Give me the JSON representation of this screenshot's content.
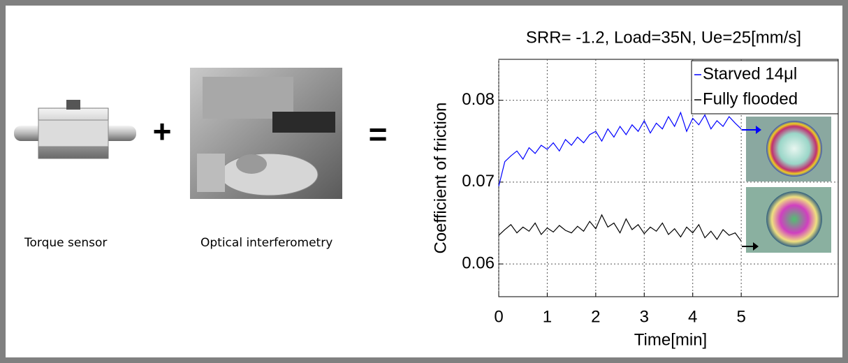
{
  "figure": {
    "plus": "+",
    "equals": "=",
    "torque_caption": "Torque sensor",
    "optics_caption": "Optical interferometry"
  },
  "chart_data": {
    "type": "line",
    "title": "SRR= -1.2, Load=35N, Ue=25[mm/s]",
    "x_label": "Time[min]",
    "y_label": "Coefficient of friction",
    "x": [
      0,
      0.125,
      0.25,
      0.375,
      0.5,
      0.625,
      0.75,
      0.875,
      1,
      1.125,
      1.25,
      1.375,
      1.5,
      1.625,
      1.75,
      1.875,
      2,
      2.125,
      2.25,
      2.375,
      2.5,
      2.625,
      2.75,
      2.875,
      3,
      3.125,
      3.25,
      3.375,
      3.5,
      3.625,
      3.75,
      3.875,
      4,
      4.125,
      4.25,
      4.375,
      4.5,
      4.625,
      4.75,
      4.875,
      5
    ],
    "series": [
      {
        "name": "Starved 14μl",
        "color": "#0000ff",
        "values": [
          0.0695,
          0.0725,
          0.0732,
          0.0738,
          0.0728,
          0.0742,
          0.0735,
          0.0745,
          0.074,
          0.0748,
          0.0738,
          0.0752,
          0.0745,
          0.0755,
          0.0748,
          0.0758,
          0.0762,
          0.075,
          0.0765,
          0.0755,
          0.0768,
          0.0758,
          0.077,
          0.0762,
          0.0775,
          0.076,
          0.0772,
          0.0765,
          0.078,
          0.0768,
          0.0785,
          0.0762,
          0.0778,
          0.077,
          0.0782,
          0.0765,
          0.0775,
          0.0768,
          0.078,
          0.0772,
          0.0765
        ]
      },
      {
        "name": "Fully flooded",
        "color": "#000000",
        "values": [
          0.0635,
          0.0642,
          0.0648,
          0.0638,
          0.0645,
          0.064,
          0.065,
          0.0636,
          0.0644,
          0.0639,
          0.0647,
          0.0641,
          0.0638,
          0.0646,
          0.064,
          0.0652,
          0.0643,
          0.066,
          0.0645,
          0.065,
          0.0638,
          0.0655,
          0.0642,
          0.0648,
          0.0637,
          0.0645,
          0.064,
          0.065,
          0.0636,
          0.0643,
          0.0633,
          0.0645,
          0.0638,
          0.0648,
          0.0632,
          0.064,
          0.063,
          0.0642,
          0.0635,
          0.0638,
          0.0628
        ]
      }
    ],
    "xlim": [
      0,
      7
    ],
    "xticks": [
      0,
      1,
      2,
      3,
      4,
      5
    ],
    "ylim": [
      0.056,
      0.085
    ],
    "yticks": [
      0.06,
      0.07,
      0.08
    ],
    "grid": true,
    "legend": "upper right"
  }
}
